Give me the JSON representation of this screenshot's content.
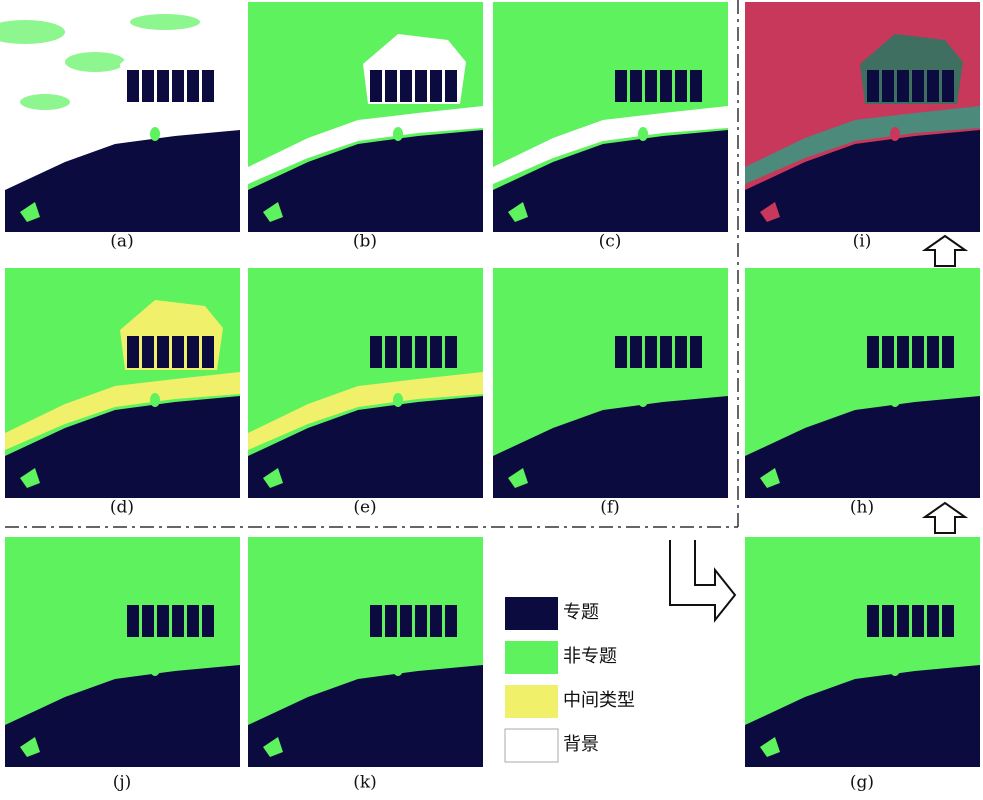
{
  "panels": [
    {
      "label": "(a)"
    },
    {
      "label": "(b)"
    },
    {
      "label": "(c)"
    },
    {
      "label": "(i)"
    },
    {
      "label": "(d)"
    },
    {
      "label": "(e)"
    },
    {
      "label": "(f)"
    },
    {
      "label": "(h)"
    },
    {
      "label": "(j)"
    },
    {
      "label": "(k)"
    },
    {
      "label": "(g)"
    }
  ],
  "legend": [
    {
      "label": "专题"
    },
    {
      "label": "非专题"
    },
    {
      "label": "中间类型"
    },
    {
      "label": "背景"
    }
  ]
}
